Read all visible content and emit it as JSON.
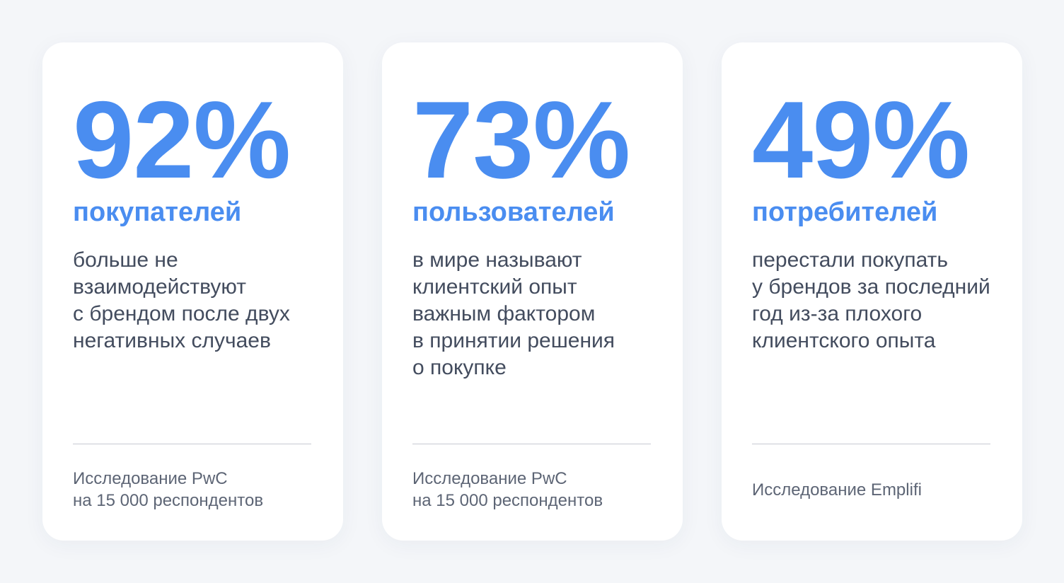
{
  "colors": {
    "background": "#f4f6f9",
    "card": "#ffffff",
    "accent": "#4a8df0",
    "text": "#434c5e",
    "muted": "#5d6575",
    "divider": "#c6cad2"
  },
  "cards": [
    {
      "value": "92%",
      "subject": "покупателей",
      "description": "больше не\nвзаимодействуют\nс брендом после двух\nнегативных случаев",
      "source": "Исследование PwC\nна 15 000 респондентов"
    },
    {
      "value": "73%",
      "subject": "пользователей",
      "description": "в мире называют\nклиентский опыт\nважным фактором\nв принятии решения\nо покупке",
      "source": "Исследование PwC\nна 15 000 респондентов"
    },
    {
      "value": "49%",
      "subject": "потребителей",
      "description": "перестали покупать\nу брендов за последний\nгод из-за плохого\nклиентского опыта",
      "source": "Исследование Emplifi"
    }
  ]
}
